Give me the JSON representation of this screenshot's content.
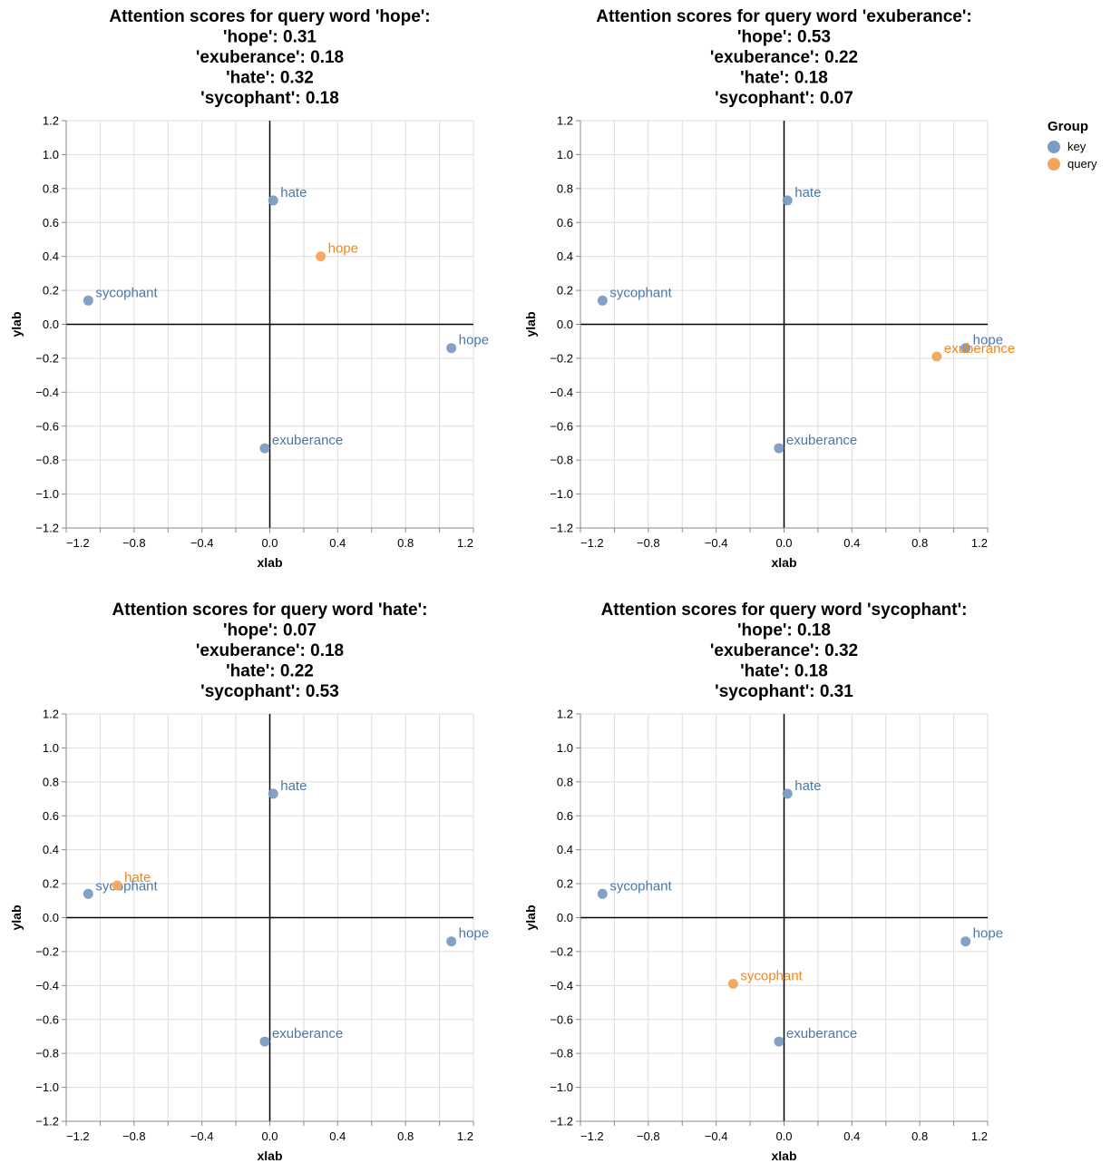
{
  "legend": {
    "title": "Group",
    "items": [
      {
        "label": "key",
        "color": "#7b9cc1"
      },
      {
        "label": "query",
        "color": "#f4a55c"
      }
    ]
  },
  "colors": {
    "key_point": "#7b9cc1",
    "key_text": "#4c78a8",
    "query_point": "#f4a55c",
    "query_text": "#f58518"
  },
  "chart_data": [
    {
      "type": "scatter",
      "title": [
        "Attention scores for query word 'hope':",
        "'hope': 0.31",
        "'exuberance': 0.18",
        "'hate': 0.32",
        "'sycophant': 0.18"
      ],
      "xlabel": "xlab",
      "ylabel": "ylab",
      "xlim": [
        -1.2,
        1.2
      ],
      "ylim": [
        -1.2,
        1.2
      ],
      "xticks": [
        -1.2,
        -0.8,
        -0.4,
        0.0,
        0.4,
        0.8,
        1.2
      ],
      "yticks": [
        1.2,
        1.0,
        0.8,
        0.6,
        0.4,
        0.2,
        0.0,
        -0.2,
        -0.4,
        -0.6,
        -0.8,
        -1.0,
        -1.2
      ],
      "grid": true,
      "points": [
        {
          "label": "hope",
          "group": "key",
          "x": 1.07,
          "y": -0.14
        },
        {
          "label": "exuberance",
          "group": "key",
          "x": -0.03,
          "y": -0.73
        },
        {
          "label": "hate",
          "group": "key",
          "x": 0.02,
          "y": 0.73
        },
        {
          "label": "sycophant",
          "group": "key",
          "x": -1.07,
          "y": 0.14
        },
        {
          "label": "hope",
          "group": "query",
          "x": 0.3,
          "y": 0.4
        }
      ]
    },
    {
      "type": "scatter",
      "title": [
        "Attention scores for query word 'exuberance':",
        "'hope': 0.53",
        "'exuberance': 0.22",
        "'hate': 0.18",
        "'sycophant': 0.07"
      ],
      "xlabel": "xlab",
      "ylabel": "ylab",
      "xlim": [
        -1.2,
        1.2
      ],
      "ylim": [
        -1.2,
        1.2
      ],
      "xticks": [
        -1.2,
        -0.8,
        -0.4,
        0.0,
        0.4,
        0.8,
        1.2
      ],
      "yticks": [
        1.2,
        1.0,
        0.8,
        0.6,
        0.4,
        0.2,
        0.0,
        -0.2,
        -0.4,
        -0.6,
        -0.8,
        -1.0,
        -1.2
      ],
      "grid": true,
      "points": [
        {
          "label": "hope",
          "group": "key",
          "x": 1.07,
          "y": -0.14
        },
        {
          "label": "exuberance",
          "group": "key",
          "x": -0.03,
          "y": -0.73
        },
        {
          "label": "hate",
          "group": "key",
          "x": 0.02,
          "y": 0.73
        },
        {
          "label": "sycophant",
          "group": "key",
          "x": -1.07,
          "y": 0.14
        },
        {
          "label": "exuberance",
          "group": "query",
          "x": 0.9,
          "y": -0.19
        }
      ]
    },
    {
      "type": "scatter",
      "title": [
        "Attention scores for query word 'hate':",
        "'hope': 0.07",
        "'exuberance': 0.18",
        "'hate': 0.22",
        "'sycophant': 0.53"
      ],
      "xlabel": "xlab",
      "ylabel": "ylab",
      "xlim": [
        -1.2,
        1.2
      ],
      "ylim": [
        -1.2,
        1.2
      ],
      "xticks": [
        -1.2,
        -0.8,
        -0.4,
        0.0,
        0.4,
        0.8,
        1.2
      ],
      "yticks": [
        1.2,
        1.0,
        0.8,
        0.6,
        0.4,
        0.2,
        0.0,
        -0.2,
        -0.4,
        -0.6,
        -0.8,
        -1.0,
        -1.2
      ],
      "grid": true,
      "points": [
        {
          "label": "hope",
          "group": "key",
          "x": 1.07,
          "y": -0.14
        },
        {
          "label": "exuberance",
          "group": "key",
          "x": -0.03,
          "y": -0.73
        },
        {
          "label": "hate",
          "group": "key",
          "x": 0.02,
          "y": 0.73
        },
        {
          "label": "sycophant",
          "group": "key",
          "x": -1.07,
          "y": 0.14
        },
        {
          "label": "hate",
          "group": "query",
          "x": -0.9,
          "y": 0.19
        }
      ]
    },
    {
      "type": "scatter",
      "title": [
        "Attention scores for query word 'sycophant':",
        "'hope': 0.18",
        "'exuberance': 0.32",
        "'hate': 0.18",
        "'sycophant': 0.31"
      ],
      "xlabel": "xlab",
      "ylabel": "ylab",
      "xlim": [
        -1.2,
        1.2
      ],
      "ylim": [
        -1.2,
        1.2
      ],
      "xticks": [
        -1.2,
        -0.8,
        -0.4,
        0.0,
        0.4,
        0.8,
        1.2
      ],
      "yticks": [
        1.2,
        1.0,
        0.8,
        0.6,
        0.4,
        0.2,
        0.0,
        -0.2,
        -0.4,
        -0.6,
        -0.8,
        -1.0,
        -1.2
      ],
      "grid": true,
      "points": [
        {
          "label": "hope",
          "group": "key",
          "x": 1.07,
          "y": -0.14
        },
        {
          "label": "exuberance",
          "group": "key",
          "x": -0.03,
          "y": -0.73
        },
        {
          "label": "hate",
          "group": "key",
          "x": 0.02,
          "y": 0.73
        },
        {
          "label": "sycophant",
          "group": "key",
          "x": -1.07,
          "y": 0.14
        },
        {
          "label": "sycophant",
          "group": "query",
          "x": -0.3,
          "y": -0.39
        }
      ]
    }
  ]
}
